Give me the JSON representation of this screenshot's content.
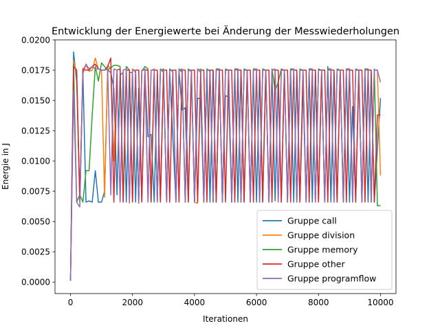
{
  "chart_data": {
    "type": "line",
    "title": "Entwicklung der Energiewerte bei Änderung der Messwiederholungen",
    "xlabel": "Iterationen",
    "ylabel": "Energie in J",
    "xlim": [
      -500,
      10500
    ],
    "ylim": [
      -0.00095,
      0.02
    ],
    "xticks": [
      0,
      2000,
      4000,
      6000,
      8000,
      10000
    ],
    "xtick_labels": [
      "0",
      "2000",
      "4000",
      "6000",
      "8000",
      "10000"
    ],
    "yticks": [
      0.0,
      0.0025,
      0.005,
      0.0075,
      0.01,
      0.0125,
      0.015,
      0.0175,
      0.02
    ],
    "ytick_labels": [
      "0.0000",
      "0.0025",
      "0.0050",
      "0.0075",
      "0.0100",
      "0.0125",
      "0.0150",
      "0.0175",
      "0.0200"
    ],
    "grid": false,
    "legend_position": "lower-right",
    "x": [
      0,
      100,
      200,
      300,
      400,
      500,
      600,
      700,
      800,
      900,
      1000,
      1100,
      1200,
      1300,
      1400,
      1500,
      1600,
      1700,
      1800,
      1900,
      2000,
      2100,
      2200,
      2300,
      2400,
      2500,
      2600,
      2700,
      2800,
      2900,
      3000,
      3100,
      3200,
      3300,
      3400,
      3500,
      3600,
      3700,
      3800,
      3900,
      4000,
      4100,
      4200,
      4300,
      4400,
      4500,
      4600,
      4700,
      4800,
      4900,
      5000,
      5100,
      5200,
      5300,
      5400,
      5500,
      5600,
      5700,
      5800,
      5900,
      6000,
      6100,
      6200,
      6300,
      6400,
      6500,
      6600,
      6700,
      6800,
      6900,
      7000,
      7100,
      7200,
      7300,
      7400,
      7500,
      7600,
      7700,
      7800,
      7900,
      8000,
      8100,
      8200,
      8300,
      8400,
      8500,
      8600,
      8700,
      8800,
      8900,
      9000,
      9100,
      9200,
      9300,
      9400,
      9500,
      9600,
      9700,
      9800,
      9900,
      10000
    ],
    "series": [
      {
        "name": "Gruppe call",
        "color": "#1f77b4",
        "values": [
          0.0001,
          0.019,
          0.0165,
          0.0069,
          0.0173,
          0.0066,
          0.0067,
          0.0066,
          0.0092,
          0.0066,
          0.0066,
          0.0075,
          0.0175,
          0.0173,
          0.016,
          0.0072,
          0.0171,
          0.0173,
          0.0066,
          0.0173,
          0.0173,
          0.0066,
          0.016,
          0.0066,
          0.0173,
          0.012,
          0.0122,
          0.0066,
          0.0172,
          0.0066,
          0.0175,
          0.0066,
          0.0174,
          0.012,
          0.0066,
          0.0175,
          0.0142,
          0.0144,
          0.0066,
          0.0173,
          0.0066,
          0.0152,
          0.0151,
          0.0066,
          0.0174,
          0.0066,
          0.0175,
          0.0066,
          0.0173,
          0.0066,
          0.0154,
          0.0153,
          0.0066,
          0.0174,
          0.0066,
          0.0175,
          0.0066,
          0.0173,
          0.0066,
          0.0171,
          0.0066,
          0.0174,
          0.0066,
          0.0175,
          0.0066,
          0.0173,
          0.0067,
          0.0167,
          0.0066,
          0.0174,
          0.0066,
          0.0175,
          0.0066,
          0.0173,
          0.0066,
          0.0162,
          0.0066,
          0.0174,
          0.0066,
          0.0175,
          0.0066,
          0.0173,
          0.0066,
          0.0178,
          0.0066,
          0.0174,
          0.0066,
          0.0175,
          0.0066,
          0.0173,
          0.0066,
          0.0145,
          0.0066,
          0.0174,
          0.0066,
          0.0175,
          0.0066,
          0.0173,
          0.0066,
          0.011,
          0.0152
        ]
      },
      {
        "name": "Gruppe division",
        "color": "#ff7f0e",
        "values": [
          0.0001,
          0.0183,
          0.0172,
          0.0066,
          0.0176,
          0.0179,
          0.0174,
          0.0175,
          0.0185,
          0.0176,
          0.0175,
          0.007,
          0.0179,
          0.0176,
          0.01,
          0.0175,
          0.0067,
          0.0175,
          0.0176,
          0.0065,
          0.0176,
          0.0173,
          0.0066,
          0.0175,
          0.0175,
          0.0066,
          0.0175,
          0.0176,
          0.0066,
          0.0175,
          0.0175,
          0.0066,
          0.0175,
          0.0174,
          0.0066,
          0.0175,
          0.0175,
          0.0066,
          0.0175,
          0.0174,
          0.0066,
          0.0065,
          0.0175,
          0.0066,
          0.0175,
          0.0175,
          0.0066,
          0.0175,
          0.0175,
          0.0066,
          0.0175,
          0.0175,
          0.0066,
          0.0175,
          0.0175,
          0.0066,
          0.0175,
          0.0175,
          0.0066,
          0.0175,
          0.0175,
          0.0066,
          0.0175,
          0.0175,
          0.0066,
          0.0175,
          0.0175,
          0.0066,
          0.0175,
          0.0175,
          0.0066,
          0.0175,
          0.0175,
          0.0066,
          0.0175,
          0.0175,
          0.0066,
          0.0175,
          0.0175,
          0.0066,
          0.0175,
          0.0175,
          0.0066,
          0.0175,
          0.0175,
          0.0066,
          0.0175,
          0.0175,
          0.0066,
          0.0175,
          0.0175,
          0.0066,
          0.0175,
          0.0175,
          0.0066,
          0.0175,
          0.0175,
          0.0066,
          0.0175,
          0.0175,
          0.0088
        ]
      },
      {
        "name": "Gruppe memory",
        "color": "#2ca02c",
        "values": [
          0.0001,
          0.018,
          0.0066,
          0.0072,
          0.0066,
          0.0092,
          0.0092,
          0.0138,
          0.0178,
          0.0166,
          0.0181,
          0.0178,
          0.0175,
          0.0177,
          0.0179,
          0.0179,
          0.0178,
          0.0066,
          0.0178,
          0.0175,
          0.0066,
          0.0174,
          0.0065,
          0.0174,
          0.0178,
          0.0176,
          0.0066,
          0.0172,
          0.0066,
          0.0176,
          0.0173,
          0.0066,
          0.0176,
          0.0174,
          0.0066,
          0.0176,
          0.0173,
          0.0066,
          0.0176,
          0.0174,
          0.0066,
          0.0176,
          0.0173,
          0.0066,
          0.0176,
          0.0174,
          0.0066,
          0.0176,
          0.0176,
          0.0066,
          0.0176,
          0.0175,
          0.0066,
          0.0176,
          0.0176,
          0.0066,
          0.0176,
          0.0175,
          0.0066,
          0.0176,
          0.0176,
          0.0066,
          0.0176,
          0.0175,
          0.0066,
          0.0176,
          0.0158,
          0.0165,
          0.0176,
          0.0175,
          0.0066,
          0.0176,
          0.0176,
          0.0066,
          0.0176,
          0.0175,
          0.0066,
          0.0176,
          0.0176,
          0.0066,
          0.0176,
          0.0175,
          0.0066,
          0.0176,
          0.0176,
          0.0066,
          0.0176,
          0.0175,
          0.0066,
          0.0176,
          0.0176,
          0.0066,
          0.0176,
          0.0175,
          0.0066,
          0.0176,
          0.0176,
          0.0066,
          0.0176,
          0.0063,
          0.0063
        ]
      },
      {
        "name": "Gruppe other",
        "color": "#d62728",
        "values": [
          0.0001,
          0.0178,
          0.0175,
          0.0066,
          0.0176,
          0.0175,
          0.0175,
          0.0178,
          0.018,
          0.0176,
          0.0175,
          0.0175,
          0.0178,
          0.0185,
          0.0066,
          0.0175,
          0.0176,
          0.0066,
          0.0175,
          0.0175,
          0.0066,
          0.0175,
          0.0175,
          0.0066,
          0.0175,
          0.0175,
          0.0066,
          0.0175,
          0.0175,
          0.0066,
          0.0175,
          0.0175,
          0.0066,
          0.0175,
          0.0175,
          0.0066,
          0.0175,
          0.0175,
          0.0066,
          0.0175,
          0.0175,
          0.0066,
          0.0175,
          0.0175,
          0.0066,
          0.0175,
          0.0175,
          0.0066,
          0.0175,
          0.0175,
          0.0066,
          0.0175,
          0.0175,
          0.0066,
          0.0175,
          0.0175,
          0.0066,
          0.0175,
          0.0175,
          0.0066,
          0.0175,
          0.0175,
          0.0066,
          0.0175,
          0.0175,
          0.0066,
          0.0175,
          0.0175,
          0.0066,
          0.0175,
          0.0175,
          0.0066,
          0.0175,
          0.0175,
          0.0066,
          0.0175,
          0.0175,
          0.0066,
          0.0175,
          0.0175,
          0.0066,
          0.0175,
          0.0175,
          0.0066,
          0.0175,
          0.0175,
          0.0066,
          0.0175,
          0.0175,
          0.0066,
          0.0175,
          0.0175,
          0.0066,
          0.0175,
          0.0175,
          0.0066,
          0.0175,
          0.0175,
          0.0066,
          0.0138,
          0.0138
        ]
      },
      {
        "name": "Gruppe programflow",
        "color": "#9467bd",
        "values": [
          0.0001,
          0.0158,
          0.0066,
          0.0062,
          0.0172,
          0.018,
          0.0176,
          0.0178,
          0.0176,
          0.0176,
          0.0175,
          0.0175,
          0.0176,
          0.0072,
          0.0176,
          0.0175,
          0.0066,
          0.0175,
          0.0176,
          0.0066,
          0.0175,
          0.0175,
          0.0066,
          0.0175,
          0.0176,
          0.0066,
          0.0175,
          0.0175,
          0.0066,
          0.0175,
          0.0176,
          0.0066,
          0.0175,
          0.0175,
          0.0066,
          0.0175,
          0.0176,
          0.0066,
          0.0175,
          0.0175,
          0.0066,
          0.0175,
          0.0176,
          0.0066,
          0.0175,
          0.0175,
          0.0066,
          0.0175,
          0.0176,
          0.0066,
          0.0175,
          0.0175,
          0.0066,
          0.0175,
          0.0176,
          0.0066,
          0.0175,
          0.0175,
          0.0066,
          0.0175,
          0.0176,
          0.0066,
          0.0175,
          0.0175,
          0.0066,
          0.0175,
          0.0176,
          0.0066,
          0.0175,
          0.0175,
          0.0066,
          0.0175,
          0.0176,
          0.0066,
          0.0175,
          0.0175,
          0.0066,
          0.0175,
          0.0176,
          0.0066,
          0.0175,
          0.0175,
          0.0066,
          0.0175,
          0.0176,
          0.0066,
          0.0175,
          0.0175,
          0.0066,
          0.0175,
          0.0176,
          0.0066,
          0.0175,
          0.0175,
          0.0066,
          0.0175,
          0.0176,
          0.0066,
          0.0175,
          0.0175,
          0.0165
        ]
      }
    ]
  }
}
